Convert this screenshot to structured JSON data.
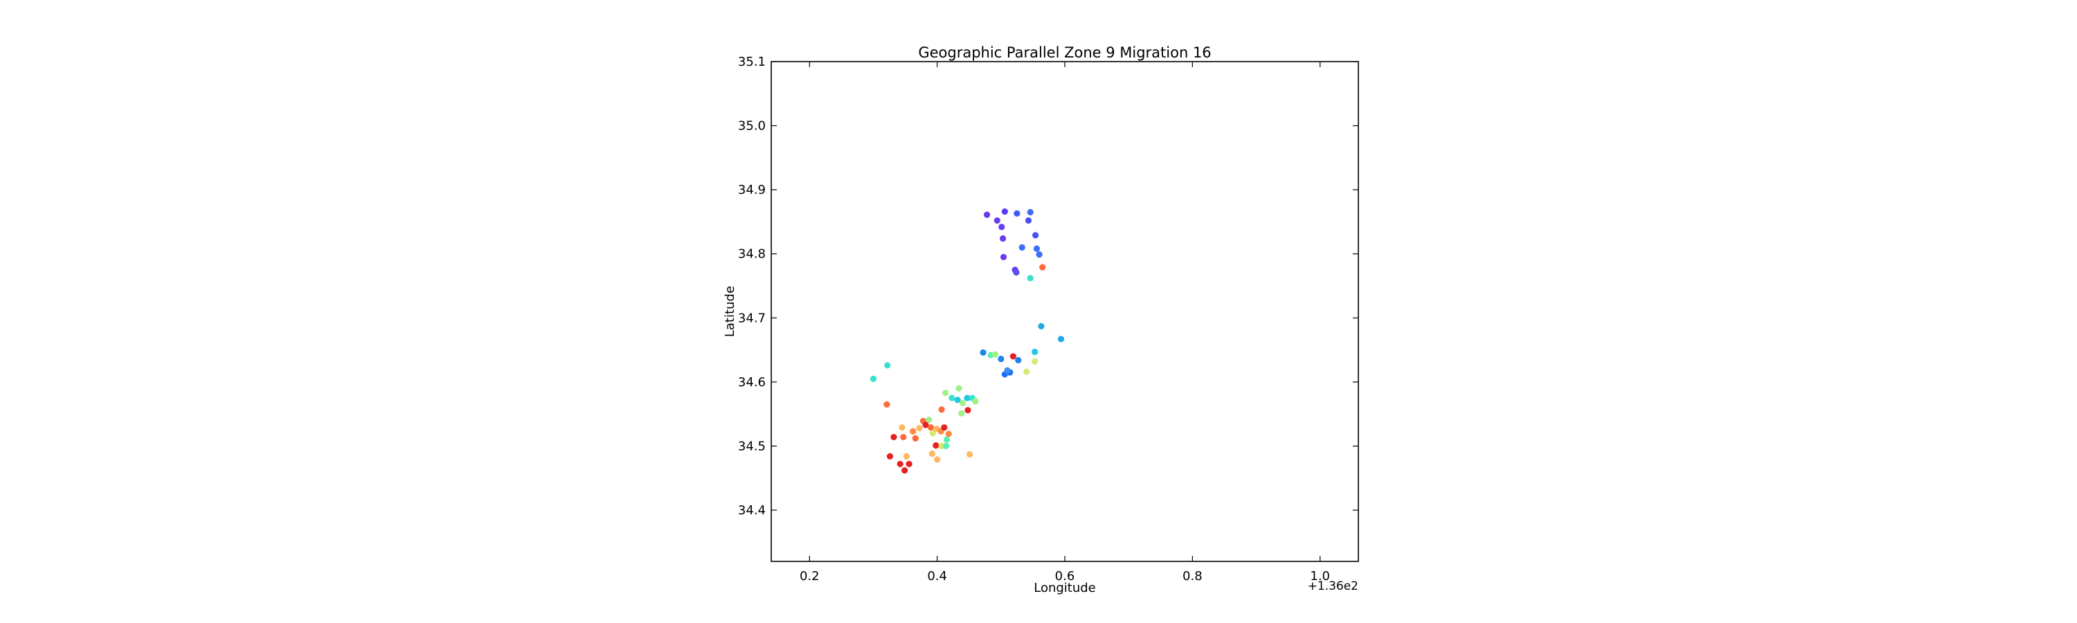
{
  "chart_data": {
    "type": "scatter",
    "title": "Geographic Parallel Zone 9 Migration 16",
    "xlabel": "Longitude",
    "ylabel": "Latitude",
    "x_offset_label": "+1.36e2",
    "xlim": [
      136.14,
      137.06
    ],
    "ylim": [
      34.32,
      35.1
    ],
    "xticks": [
      136.2,
      136.4,
      136.6,
      136.8,
      137.0
    ],
    "xtick_labels": [
      "0.2",
      "0.4",
      "0.6",
      "0.8",
      "1.0"
    ],
    "yticks": [
      34.4,
      34.5,
      34.6,
      34.7,
      34.8,
      34.9,
      35.0,
      35.1
    ],
    "ytick_labels": [
      "34.4",
      "34.5",
      "34.6",
      "34.7",
      "34.8",
      "34.9",
      "35.0",
      "35.1"
    ],
    "grid": false,
    "legend": false,
    "points": [
      {
        "x": 136.478,
        "y": 34.861,
        "color": "#6a3cf0"
      },
      {
        "x": 136.494,
        "y": 34.852,
        "color": "#6a3cf0"
      },
      {
        "x": 136.506,
        "y": 34.866,
        "color": "#5a3ef6"
      },
      {
        "x": 136.525,
        "y": 34.863,
        "color": "#3f5cf6"
      },
      {
        "x": 136.546,
        "y": 34.865,
        "color": "#3f6af4"
      },
      {
        "x": 136.543,
        "y": 34.852,
        "color": "#4a4ef8"
      },
      {
        "x": 136.501,
        "y": 34.842,
        "color": "#6a3cf0"
      },
      {
        "x": 136.503,
        "y": 34.824,
        "color": "#6a3cf0"
      },
      {
        "x": 136.554,
        "y": 34.829,
        "color": "#4a4ef8"
      },
      {
        "x": 136.533,
        "y": 34.81,
        "color": "#3a6ef8"
      },
      {
        "x": 136.556,
        "y": 34.808,
        "color": "#3a6ef8"
      },
      {
        "x": 136.56,
        "y": 34.799,
        "color": "#3a6ef8"
      },
      {
        "x": 136.504,
        "y": 34.795,
        "color": "#6a3cf0"
      },
      {
        "x": 136.522,
        "y": 34.775,
        "color": "#6a3cf0"
      },
      {
        "x": 136.524,
        "y": 34.771,
        "color": "#5a4ef4"
      },
      {
        "x": 136.565,
        "y": 34.779,
        "color": "#ff6a3a"
      },
      {
        "x": 136.546,
        "y": 34.762,
        "color": "#3ae0d0"
      },
      {
        "x": 136.563,
        "y": 34.687,
        "color": "#22a8e8"
      },
      {
        "x": 136.594,
        "y": 34.667,
        "color": "#22a8e8"
      },
      {
        "x": 136.472,
        "y": 34.646,
        "color": "#1c86e8"
      },
      {
        "x": 136.484,
        "y": 34.642,
        "color": "#5cf0b0"
      },
      {
        "x": 136.491,
        "y": 34.643,
        "color": "#a0f088"
      },
      {
        "x": 136.5,
        "y": 34.636,
        "color": "#1c86e8"
      },
      {
        "x": 136.519,
        "y": 34.64,
        "color": "#e82020"
      },
      {
        "x": 136.527,
        "y": 34.634,
        "color": "#1c86e8"
      },
      {
        "x": 136.553,
        "y": 34.647,
        "color": "#22c8e0"
      },
      {
        "x": 136.553,
        "y": 34.632,
        "color": "#d4ea70"
      },
      {
        "x": 136.54,
        "y": 34.616,
        "color": "#d4ea70"
      },
      {
        "x": 136.506,
        "y": 34.612,
        "color": "#1c6ef8"
      },
      {
        "x": 136.514,
        "y": 34.615,
        "color": "#1c6ef8"
      },
      {
        "x": 136.51,
        "y": 34.618,
        "color": "#3a90f0"
      },
      {
        "x": 136.3,
        "y": 34.605,
        "color": "#3ae0d0"
      },
      {
        "x": 136.322,
        "y": 34.626,
        "color": "#3ae0d0"
      },
      {
        "x": 136.321,
        "y": 34.565,
        "color": "#ff6a3a"
      },
      {
        "x": 136.413,
        "y": 34.583,
        "color": "#a0f088"
      },
      {
        "x": 136.423,
        "y": 34.575,
        "color": "#3ae0d0"
      },
      {
        "x": 136.434,
        "y": 34.59,
        "color": "#a0f088"
      },
      {
        "x": 136.432,
        "y": 34.572,
        "color": "#22c8e0"
      },
      {
        "x": 136.44,
        "y": 34.567,
        "color": "#a0f088"
      },
      {
        "x": 136.447,
        "y": 34.575,
        "color": "#22c8e0"
      },
      {
        "x": 136.455,
        "y": 34.575,
        "color": "#3ae0d0"
      },
      {
        "x": 136.46,
        "y": 34.57,
        "color": "#a0f088"
      },
      {
        "x": 136.438,
        "y": 34.551,
        "color": "#a0f088"
      },
      {
        "x": 136.448,
        "y": 34.556,
        "color": "#e82020"
      },
      {
        "x": 136.407,
        "y": 34.557,
        "color": "#ff6a3a"
      },
      {
        "x": 136.345,
        "y": 34.529,
        "color": "#ffb860"
      },
      {
        "x": 136.362,
        "y": 34.523,
        "color": "#ff8a40"
      },
      {
        "x": 136.372,
        "y": 34.528,
        "color": "#ffb860"
      },
      {
        "x": 136.378,
        "y": 34.539,
        "color": "#ff6a3a"
      },
      {
        "x": 136.382,
        "y": 34.533,
        "color": "#e82020"
      },
      {
        "x": 136.387,
        "y": 34.541,
        "color": "#a0f088"
      },
      {
        "x": 136.39,
        "y": 34.529,
        "color": "#ff6a3a"
      },
      {
        "x": 136.393,
        "y": 34.52,
        "color": "#d4ea70"
      },
      {
        "x": 136.399,
        "y": 34.527,
        "color": "#ffb860"
      },
      {
        "x": 136.406,
        "y": 34.523,
        "color": "#ff8a40"
      },
      {
        "x": 136.411,
        "y": 34.529,
        "color": "#e82020"
      },
      {
        "x": 136.415,
        "y": 34.51,
        "color": "#5cf0b0"
      },
      {
        "x": 136.418,
        "y": 34.519,
        "color": "#ff8a40"
      },
      {
        "x": 136.332,
        "y": 34.514,
        "color": "#e82020"
      },
      {
        "x": 136.347,
        "y": 34.514,
        "color": "#ff6a3a"
      },
      {
        "x": 136.366,
        "y": 34.512,
        "color": "#ff6a3a"
      },
      {
        "x": 136.398,
        "y": 34.501,
        "color": "#e82020"
      },
      {
        "x": 136.407,
        "y": 34.5,
        "color": "#d4ea70"
      },
      {
        "x": 136.414,
        "y": 34.5,
        "color": "#5cf0b0"
      },
      {
        "x": 136.326,
        "y": 34.484,
        "color": "#e82020"
      },
      {
        "x": 136.352,
        "y": 34.484,
        "color": "#ffb860"
      },
      {
        "x": 136.392,
        "y": 34.488,
        "color": "#ffb860"
      },
      {
        "x": 136.4,
        "y": 34.479,
        "color": "#ffb860"
      },
      {
        "x": 136.451,
        "y": 34.487,
        "color": "#ffb860"
      },
      {
        "x": 136.342,
        "y": 34.472,
        "color": "#e82020"
      },
      {
        "x": 136.356,
        "y": 34.472,
        "color": "#e82020"
      },
      {
        "x": 136.349,
        "y": 34.462,
        "color": "#e82020"
      }
    ]
  }
}
